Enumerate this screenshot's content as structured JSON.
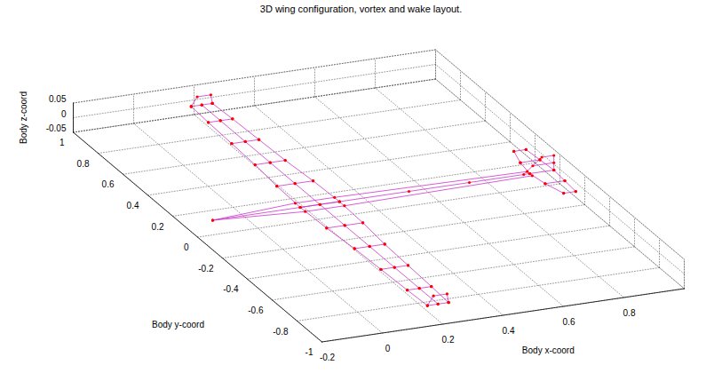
{
  "chart_data": {
    "type": "wireframe3d",
    "title": "3D wing configuration, vortex and wake layout.",
    "xlabel": "Body x-coord",
    "ylabel": "Body y-coord",
    "zlabel": "Body z-coord",
    "xlim": [
      -0.2,
      1
    ],
    "ylim": [
      -1,
      1
    ],
    "zlim": [
      -0.05,
      0.05
    ],
    "xticks": [
      -0.2,
      0,
      0.2,
      0.4,
      0.6,
      0.8
    ],
    "yticks": [
      -1,
      -0.8,
      -0.6,
      -0.4,
      -0.2,
      0,
      0.2,
      0.4,
      0.6,
      0.8,
      1
    ],
    "zticks": [
      -0.05,
      0,
      0.05
    ],
    "grid": true,
    "series": [
      {
        "type": "line",
        "color": "#cc33cc",
        "marker": "circle",
        "lines": [
          [
            [
              0.17,
              -0.95,
              0
            ],
            [
              0.165,
              -0.8,
              0
            ],
            [
              0.16,
              -0.6,
              0
            ],
            [
              0.155,
              -0.4,
              0
            ],
            [
              0.145,
              -0.2,
              0
            ],
            [
              0.14,
              0,
              0
            ],
            [
              0.145,
              0.2,
              0
            ],
            [
              0.155,
              0.4,
              0
            ],
            [
              0.16,
              0.6,
              0
            ],
            [
              0.165,
              0.8,
              0
            ],
            [
              0.17,
              0.95,
              0
            ]
          ],
          [
            [
              0.205,
              -0.95,
              0
            ],
            [
              0.205,
              -0.8,
              0
            ],
            [
              0.205,
              -0.6,
              0
            ],
            [
              0.205,
              -0.4,
              0
            ],
            [
              0.205,
              -0.2,
              0
            ],
            [
              0.205,
              0,
              0
            ],
            [
              0.205,
              0.2,
              0
            ],
            [
              0.205,
              0.4,
              0
            ],
            [
              0.205,
              0.6,
              0
            ],
            [
              0.205,
              0.8,
              0
            ],
            [
              0.205,
              0.95,
              0
            ]
          ],
          [
            [
              0.24,
              -0.95,
              0
            ],
            [
              0.245,
              -0.8,
              0
            ],
            [
              0.25,
              -0.6,
              0
            ],
            [
              0.255,
              -0.4,
              0
            ],
            [
              0.265,
              -0.2,
              0
            ],
            [
              0.27,
              0,
              0
            ],
            [
              0.265,
              0.2,
              0
            ],
            [
              0.255,
              0.4,
              0
            ],
            [
              0.25,
              0.6,
              0
            ],
            [
              0.245,
              0.8,
              0
            ],
            [
              0.24,
              0.95,
              0
            ]
          ],
          [
            [
              0.17,
              -0.95,
              0
            ],
            [
              0.205,
              -0.95,
              0
            ],
            [
              0.24,
              -0.95,
              0
            ]
          ],
          [
            [
              0.165,
              -0.8,
              0
            ],
            [
              0.205,
              -0.8,
              0
            ],
            [
              0.245,
              -0.8,
              0
            ]
          ],
          [
            [
              0.16,
              -0.6,
              0
            ],
            [
              0.205,
              -0.6,
              0
            ],
            [
              0.25,
              -0.6,
              0
            ]
          ],
          [
            [
              0.155,
              -0.4,
              0
            ],
            [
              0.205,
              -0.4,
              0
            ],
            [
              0.255,
              -0.4,
              0
            ]
          ],
          [
            [
              0.145,
              -0.2,
              0
            ],
            [
              0.205,
              -0.2,
              0
            ],
            [
              0.265,
              -0.2,
              0
            ]
          ],
          [
            [
              0.14,
              0,
              0
            ],
            [
              0.205,
              0,
              0
            ],
            [
              0.27,
              0,
              0
            ]
          ],
          [
            [
              0.145,
              0.2,
              0
            ],
            [
              0.205,
              0.2,
              0
            ],
            [
              0.265,
              0.2,
              0
            ]
          ],
          [
            [
              0.155,
              0.4,
              0
            ],
            [
              0.205,
              0.4,
              0
            ],
            [
              0.255,
              0.4,
              0
            ]
          ],
          [
            [
              0.16,
              0.6,
              0
            ],
            [
              0.205,
              0.6,
              0
            ],
            [
              0.25,
              0.6,
              0
            ]
          ],
          [
            [
              0.165,
              0.8,
              0
            ],
            [
              0.205,
              0.8,
              0
            ],
            [
              0.245,
              0.8,
              0
            ]
          ],
          [
            [
              0.17,
              0.95,
              0
            ],
            [
              0.205,
              0.95,
              0
            ],
            [
              0.24,
              0.95,
              0
            ]
          ],
          [
            [
              0.17,
              0.95,
              0
            ],
            [
              0.19,
              0.95,
              0.03
            ],
            [
              0.235,
              0.95,
              0.03
            ],
            [
              0.24,
              0.95,
              0
            ]
          ],
          [
            [
              0.17,
              -0.95,
              0
            ],
            [
              0.19,
              -0.95,
              0.03
            ],
            [
              0.235,
              -0.95,
              0.03
            ],
            [
              0.24,
              -0.95,
              0
            ]
          ],
          [
            [
              -0.15,
              0,
              0
            ],
            [
              0.14,
              0.04,
              0
            ],
            [
              0.27,
              0.04,
              0
            ],
            [
              0.9,
              0.02,
              0
            ]
          ],
          [
            [
              -0.15,
              0,
              0
            ],
            [
              0.14,
              -0.04,
              0
            ],
            [
              0.27,
              -0.04,
              0
            ],
            [
              0.9,
              -0.02,
              0
            ]
          ],
          [
            [
              -0.15,
              0,
              0
            ],
            [
              0.14,
              0,
              0
            ],
            [
              0.27,
              0,
              0
            ],
            [
              0.5,
              0,
              0
            ],
            [
              0.7,
              0,
              0
            ],
            [
              0.9,
              0,
              0
            ]
          ],
          [
            [
              0.93,
              -0.2,
              0
            ],
            [
              0.91,
              -0.1,
              0
            ],
            [
              0.9,
              0,
              0
            ],
            [
              0.91,
              0.1,
              0
            ],
            [
              0.93,
              0.2,
              0
            ]
          ],
          [
            [
              0.97,
              -0.2,
              0
            ],
            [
              0.975,
              -0.1,
              0
            ],
            [
              0.98,
              0,
              0
            ],
            [
              0.975,
              0.1,
              0
            ],
            [
              0.97,
              0.2,
              0
            ]
          ],
          [
            [
              0.93,
              -0.2,
              0
            ],
            [
              0.97,
              -0.2,
              0
            ]
          ],
          [
            [
              0.91,
              -0.1,
              0
            ],
            [
              0.975,
              -0.1,
              0
            ]
          ],
          [
            [
              0.9,
              0,
              0
            ],
            [
              0.98,
              0,
              0
            ]
          ],
          [
            [
              0.91,
              0.1,
              0
            ],
            [
              0.975,
              0.1,
              0
            ]
          ],
          [
            [
              0.93,
              0.2,
              0
            ],
            [
              0.97,
              0.2,
              0
            ]
          ],
          [
            [
              0.88,
              0,
              0
            ],
            [
              0.94,
              0,
              0.05
            ],
            [
              0.98,
              0,
              0.05
            ],
            [
              0.98,
              0,
              0
            ]
          ],
          [
            [
              0.91,
              0,
              0.025
            ],
            [
              0.98,
              0,
              0.025
            ]
          ]
        ]
      }
    ]
  }
}
